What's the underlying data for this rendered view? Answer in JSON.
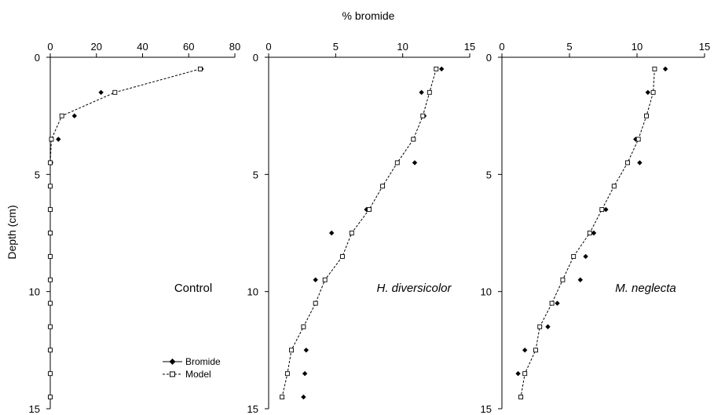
{
  "figure": {
    "top_label": "% bromide",
    "y_axis_label": "Depth (cm)"
  },
  "legend": [
    {
      "label": "Bromide",
      "marker": "diamond",
      "line": "solid"
    },
    {
      "label": "Model",
      "marker": "open-square",
      "line": "dashed"
    }
  ],
  "chart_data": [
    {
      "type": "scatter",
      "panel_label": "Control",
      "label_italic": false,
      "xlim": [
        0,
        80
      ],
      "xticks": [
        0,
        20,
        40,
        60,
        80
      ],
      "ylim": [
        0,
        15
      ],
      "yticks": [
        0,
        5,
        10,
        15
      ],
      "y_inverted": true,
      "series": [
        {
          "name": "Bromide",
          "x": [
            65.5,
            22,
            10.5,
            3.5,
            0.3,
            0,
            0,
            0,
            0,
            0,
            0,
            0,
            0,
            0,
            0
          ],
          "y": [
            0.5,
            1.5,
            2.5,
            3.5,
            4.5,
            5.5,
            6.5,
            7.5,
            8.5,
            9.5,
            10.5,
            11.5,
            12.5,
            13.5,
            14.5
          ]
        },
        {
          "name": "Model",
          "x": [
            65,
            28,
            5,
            0.5,
            0,
            0,
            0,
            0,
            0,
            0,
            0,
            0,
            0,
            0,
            0
          ],
          "y": [
            0.5,
            1.5,
            2.5,
            3.5,
            4.5,
            5.5,
            6.5,
            7.5,
            8.5,
            9.5,
            10.5,
            11.5,
            12.5,
            13.5,
            14.5
          ]
        }
      ]
    },
    {
      "type": "scatter",
      "panel_label": "H. diversicolor",
      "label_italic": true,
      "xlim": [
        0,
        15
      ],
      "xticks": [
        0,
        5,
        10,
        15
      ],
      "ylim": [
        0,
        15
      ],
      "yticks": [
        0,
        5,
        10,
        15
      ],
      "y_inverted": true,
      "series": [
        {
          "name": "Bromide",
          "x": [
            12.9,
            11.4,
            11.6,
            10.8,
            10.9,
            8.5,
            7.3,
            4.7,
            5.5,
            3.5,
            3.5,
            2.6,
            2.8,
            2.7,
            2.6
          ],
          "y": [
            0.5,
            1.5,
            2.5,
            3.5,
            4.5,
            5.5,
            6.5,
            7.5,
            8.5,
            9.5,
            10.5,
            11.5,
            12.5,
            13.5,
            14.5
          ]
        },
        {
          "name": "Model",
          "x": [
            12.5,
            12.0,
            11.5,
            10.8,
            9.6,
            8.5,
            7.5,
            6.2,
            5.5,
            4.2,
            3.5,
            2.6,
            1.7,
            1.4,
            1.0
          ],
          "y": [
            0.5,
            1.5,
            2.5,
            3.5,
            4.5,
            5.5,
            6.5,
            7.5,
            8.5,
            9.5,
            10.5,
            11.5,
            12.5,
            13.5,
            14.5
          ]
        }
      ]
    },
    {
      "type": "scatter",
      "panel_label": "M. neglecta",
      "label_italic": true,
      "xlim": [
        0,
        15
      ],
      "xticks": [
        0,
        5,
        10,
        15
      ],
      "ylim": [
        0,
        15
      ],
      "yticks": [
        0,
        5,
        10,
        15
      ],
      "y_inverted": true,
      "series": [
        {
          "name": "Bromide",
          "x": [
            12.1,
            10.8,
            10.7,
            9.9,
            10.2,
            8.3,
            7.7,
            6.8,
            6.2,
            5.8,
            4.1,
            3.4,
            1.7,
            1.2,
            1.4
          ],
          "y": [
            0.5,
            1.5,
            2.5,
            3.5,
            4.5,
            5.5,
            6.5,
            7.5,
            8.5,
            9.5,
            10.5,
            11.5,
            12.5,
            13.5,
            14.5
          ]
        },
        {
          "name": "Model",
          "x": [
            11.3,
            11.2,
            10.7,
            10.1,
            9.3,
            8.3,
            7.4,
            6.5,
            5.3,
            4.5,
            3.7,
            2.8,
            2.5,
            1.7,
            1.4
          ],
          "y": [
            0.5,
            1.5,
            2.5,
            3.5,
            4.5,
            5.5,
            6.5,
            7.5,
            8.5,
            9.5,
            10.5,
            11.5,
            12.5,
            13.5,
            14.5
          ]
        }
      ]
    }
  ]
}
